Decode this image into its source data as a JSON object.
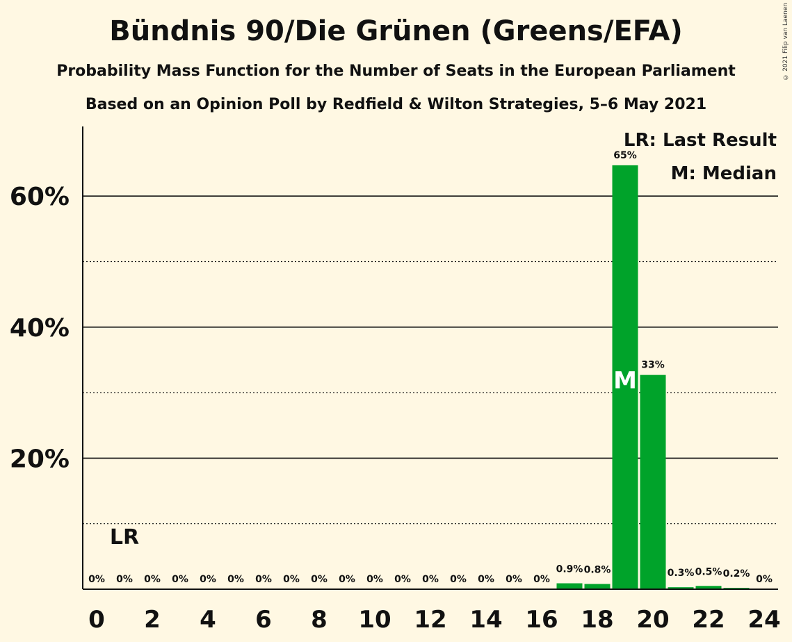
{
  "title": "Bündnis 90/Die Grünen (Greens/EFA)",
  "subtitle": "Probability Mass Function for the Number of Seats in the European Parliament",
  "subtitle2": "Based on an Opinion Poll by Redfield & Wilton Strategies, 5–6 May 2021",
  "copyright": "© 2021 Filip van Laenen",
  "legend": {
    "last_result": "LR: Last Result",
    "median": "M: Median"
  },
  "colors": {
    "background": "#FFF8E3",
    "bar": "#00A32A",
    "text": "#111111"
  },
  "chart_data": {
    "type": "bar",
    "xlabel": "",
    "ylabel": "",
    "ylim": [
      0,
      70
    ],
    "x_ticks": [
      0,
      2,
      4,
      6,
      8,
      10,
      12,
      14,
      16,
      18,
      20,
      22,
      24
    ],
    "y_ticks": [
      20,
      40,
      60
    ],
    "y_tick_labels": [
      "20%",
      "40%",
      "60%"
    ],
    "y_minor_gridlines": [
      10,
      30,
      50
    ],
    "categories": [
      0,
      1,
      2,
      3,
      4,
      5,
      6,
      7,
      8,
      9,
      10,
      11,
      12,
      13,
      14,
      15,
      16,
      17,
      18,
      19,
      20,
      21,
      22,
      23,
      24
    ],
    "values": [
      0,
      0,
      0,
      0,
      0,
      0,
      0,
      0,
      0,
      0,
      0,
      0,
      0,
      0,
      0,
      0,
      0,
      0.9,
      0.8,
      64.7,
      32.7,
      0.3,
      0.5,
      0.2,
      0
    ],
    "value_labels": [
      "0%",
      "0%",
      "0%",
      "0%",
      "0%",
      "0%",
      "0%",
      "0%",
      "0%",
      "0%",
      "0%",
      "0%",
      "0%",
      "0%",
      "0%",
      "0%",
      "0%",
      "0.9%",
      "0.8%",
      "65%",
      "33%",
      "0.3%",
      "0.5%",
      "0.2%",
      "0%"
    ],
    "last_result_seat": 1,
    "last_result_label": "LR",
    "median_seat": 19,
    "median_label": "M"
  }
}
